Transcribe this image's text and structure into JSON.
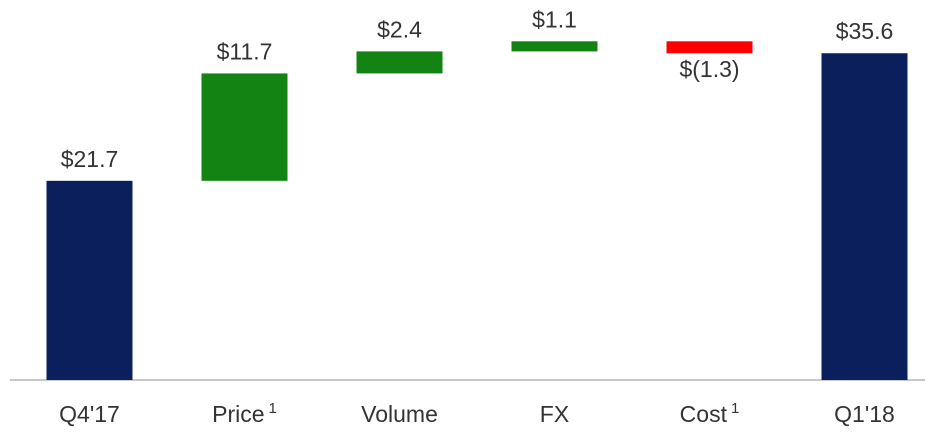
{
  "chart_data": {
    "type": "waterfall",
    "categories": [
      "Q4'17",
      "Price",
      "Volume",
      "FX",
      "Cost",
      "Q1'18"
    ],
    "category_notes": [
      null,
      "1",
      null,
      null,
      "1",
      null
    ],
    "measures": [
      "total",
      "relative",
      "relative",
      "relative",
      "relative",
      "total"
    ],
    "values": [
      21.7,
      11.7,
      2.4,
      1.1,
      -1.3,
      35.6
    ],
    "value_labels": [
      "$21.7",
      "$11.7",
      "$2.4",
      "$1.1",
      "$(1.3)",
      "$35.6"
    ],
    "colors": {
      "total": "#0b1f5c",
      "increase": "#138313",
      "decrease": "#ff0000"
    },
    "ylim": [
      0,
      41.4
    ]
  }
}
